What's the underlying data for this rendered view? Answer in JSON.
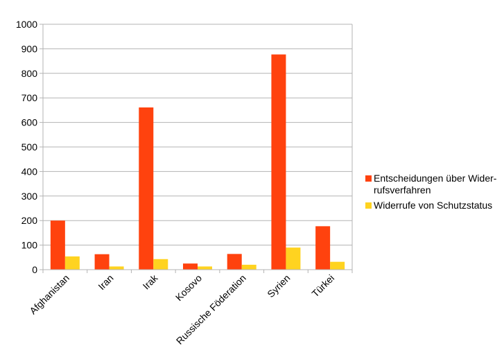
{
  "chart_data": {
    "type": "bar",
    "title": "",
    "xlabel": "",
    "ylabel": "",
    "categories": [
      "Afghanistan",
      "Iran",
      "Irak",
      "Kosovo",
      "Russische Föderation",
      "Syrien",
      "Türkei"
    ],
    "series": [
      {
        "name": "Entscheidungen über Wider-rufsverfahren",
        "name_lines": [
          "Entscheidungen über Wider-",
          "rufsverfahren"
        ],
        "color": "#ff420e",
        "values": [
          200,
          63,
          661,
          25,
          64,
          877,
          177
        ]
      },
      {
        "name": "Widerrufe von Schutzstatus",
        "name_lines": [
          "Widerrufe von Schutzstatus"
        ],
        "color": "#ffd320",
        "values": [
          54,
          13,
          43,
          13,
          20,
          90,
          32
        ]
      }
    ],
    "ylim": [
      0,
      1000
    ],
    "yticks": [
      0,
      100,
      200,
      300,
      400,
      500,
      600,
      700,
      800,
      900,
      1000
    ],
    "grid": true,
    "legend_position": "right"
  }
}
